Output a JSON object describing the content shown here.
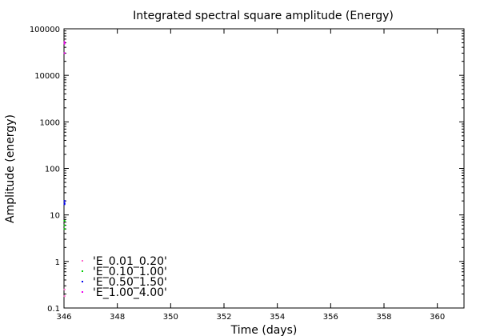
{
  "chart_data": {
    "type": "scatter",
    "title": "Integrated spectral square amplitude (Energy)",
    "xlabel": "Time (days)",
    "ylabel": "Amplitude (energy)",
    "xlim": [
      346,
      361
    ],
    "ylim": [
      0.1,
      100000
    ],
    "yscale": "log",
    "xticks": [
      346,
      348,
      350,
      352,
      354,
      356,
      358,
      360
    ],
    "yticks": [
      0.1,
      1,
      10,
      100,
      1000,
      10000,
      100000
    ],
    "ytick_labels": [
      "0.1",
      "1",
      "10",
      "100",
      "1000",
      "10000",
      "100000"
    ],
    "grid": false,
    "legend_position": "bottom-left",
    "series": [
      {
        "name": "'E_0.01_0.20'",
        "color": "#ff66cc",
        "points": [
          [
            346.02,
            0.25
          ],
          [
            346.02,
            0.18
          ]
        ]
      },
      {
        "name": "'E_0.10_1.00'",
        "color": "#00cc00",
        "points": [
          [
            346.02,
            6.0
          ],
          [
            346.02,
            5.0
          ],
          [
            346.02,
            7.5
          ]
        ]
      },
      {
        "name": "'E_0.50_1.50'",
        "color": "#0000ee",
        "points": [
          [
            346.02,
            18
          ],
          [
            346.02,
            17
          ],
          [
            346.02,
            20
          ]
        ]
      },
      {
        "name": "'E_1.00_4.00'",
        "color": "#ee00ee",
        "points": [
          [
            346.02,
            52000
          ],
          [
            346.02,
            48000
          ],
          [
            346.02,
            30000
          ]
        ]
      }
    ]
  }
}
